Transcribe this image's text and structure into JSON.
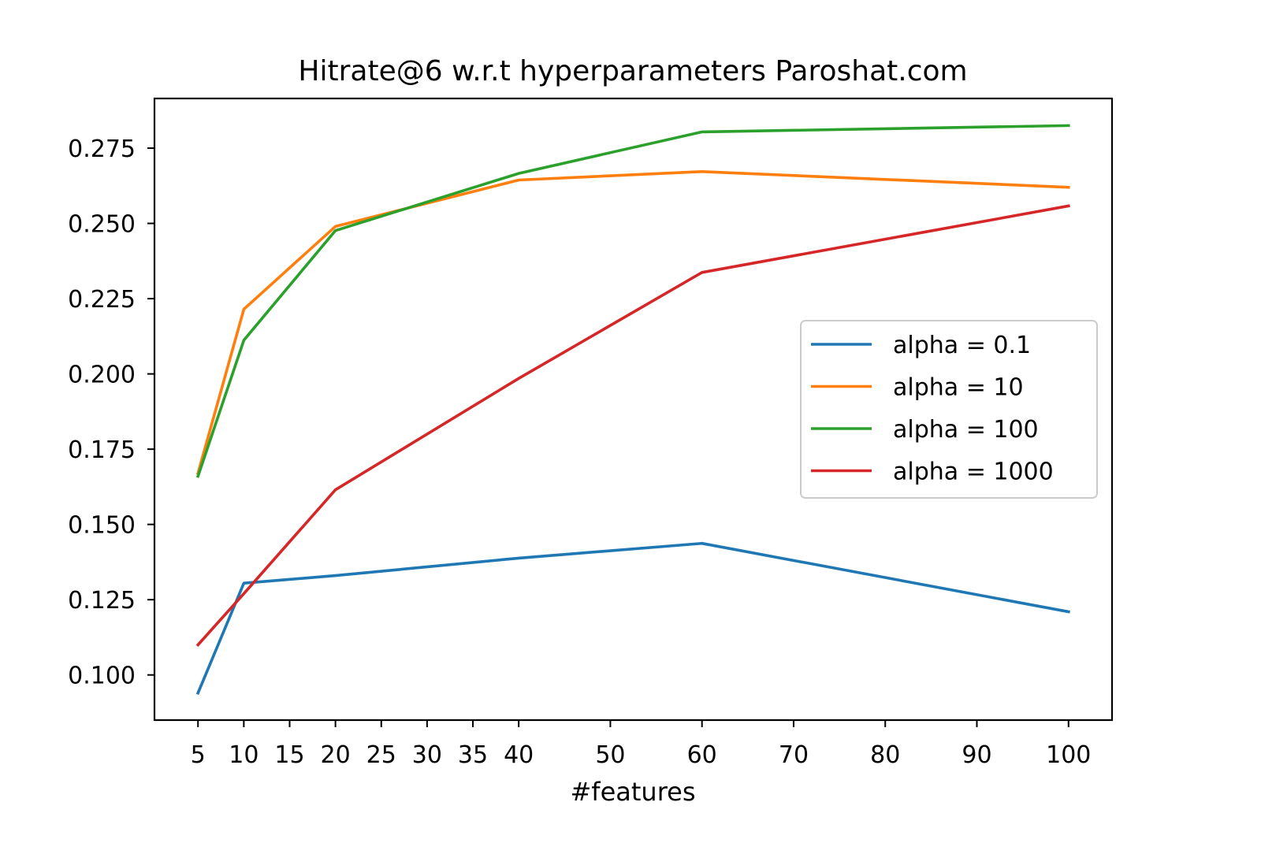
{
  "chart_data": {
    "type": "line",
    "title": "Hitrate@6 w.r.t hyperparameters Paroshat.com",
    "xlabel": "#features",
    "ylabel": "",
    "x": [
      5,
      10,
      20,
      40,
      60,
      100
    ],
    "xticks": [
      5,
      10,
      15,
      20,
      25,
      30,
      35,
      40,
      50,
      60,
      70,
      80,
      90,
      100
    ],
    "xlim": [
      0.25,
      104.75
    ],
    "yticks": [
      "0.100",
      "0.125",
      "0.150",
      "0.175",
      "0.200",
      "0.225",
      "0.250",
      "0.275"
    ],
    "ylim": [
      0.085,
      0.2915
    ],
    "grid": false,
    "legend_position": "center right",
    "series": [
      {
        "name": "alpha = 0.1",
        "color": "#1f77b4",
        "values": [
          0.094,
          0.1305,
          0.133,
          0.1388,
          0.1437,
          0.121
        ]
      },
      {
        "name": "alpha = 10",
        "color": "#ff7f0e",
        "values": [
          0.167,
          0.2215,
          0.249,
          0.2644,
          0.2672,
          0.262
        ]
      },
      {
        "name": "alpha = 100",
        "color": "#2ca02c",
        "values": [
          0.166,
          0.2112,
          0.2476,
          0.2666,
          0.2804,
          0.2825
        ]
      },
      {
        "name": "alpha = 1000",
        "color": "#d62728",
        "values": [
          0.11,
          0.127,
          0.1615,
          0.1985,
          0.2337,
          0.2558
        ]
      }
    ]
  }
}
